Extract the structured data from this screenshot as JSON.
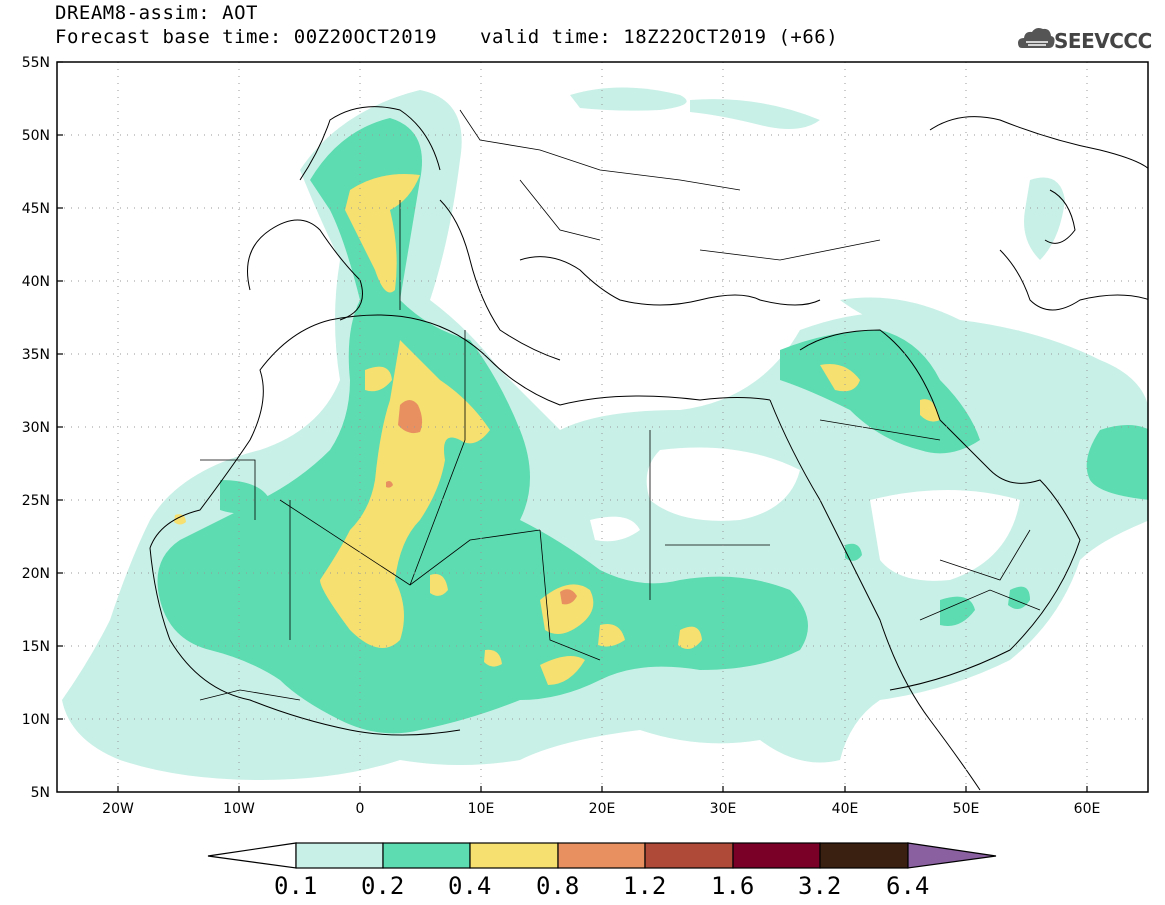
{
  "header": {
    "title": "DREAM8-assim: AOT",
    "base_time": "Forecast base time: 00Z20OCT2019",
    "valid_time": "valid time: 18Z22OCT2019 (+66)",
    "logo_text": "SEEVCCC"
  },
  "map": {
    "lon_range": [
      -25,
      65
    ],
    "lat_range": [
      5,
      55
    ],
    "lat_ticks": [
      "55N",
      "50N",
      "45N",
      "40N",
      "35N",
      "30N",
      "25N",
      "20N",
      "15N",
      "10N",
      "5N"
    ],
    "lon_ticks": [
      "20W",
      "10W",
      "0",
      "10E",
      "20E",
      "30E",
      "40E",
      "50E",
      "60E"
    ],
    "gridlines": "dotted",
    "field": "AOT"
  },
  "colorbar": {
    "levels": [
      "0.1",
      "0.2",
      "0.4",
      "0.8",
      "1.2",
      "1.6",
      "3.2",
      "6.4"
    ],
    "colors": [
      "#ffffff",
      "#c8f0e6",
      "#5cdcb0",
      "#f5e070",
      "#e89060",
      "#b04a38",
      "#7a0028",
      "#3a2010",
      "#8a60a0"
    ]
  },
  "colors": {
    "level_01": "#c8f0e6",
    "level_02": "#5cdcb0",
    "level_04": "#f5e070",
    "level_08": "#e89060"
  }
}
